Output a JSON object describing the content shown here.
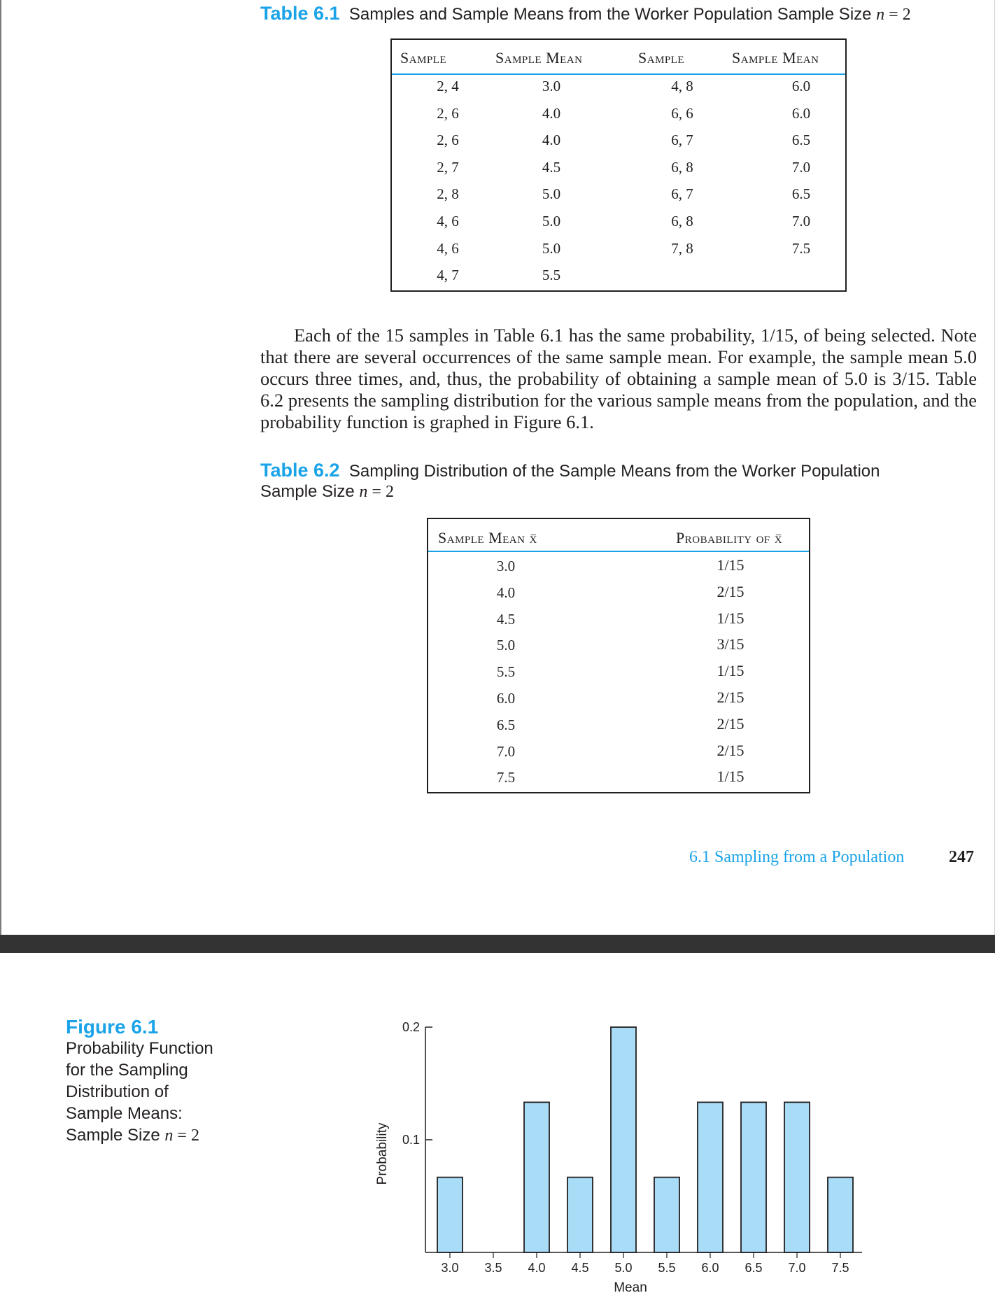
{
  "table1": {
    "caption_num": "Table 6.1",
    "caption_text": "Samples and Sample Means from the Worker Population Sample Size ",
    "caption_n": "n",
    "caption_eq": " = 2",
    "headers": [
      "Sample",
      "Sample Mean",
      "Sample",
      "Sample Mean"
    ],
    "left_rows": [
      [
        "2, 4",
        "3.0"
      ],
      [
        "2, 6",
        "4.0"
      ],
      [
        "2, 6",
        "4.0"
      ],
      [
        "2, 7",
        "4.5"
      ],
      [
        "2, 8",
        "5.0"
      ],
      [
        "4, 6",
        "5.0"
      ],
      [
        "4, 6",
        "5.0"
      ],
      [
        "4, 7",
        "5.5"
      ]
    ],
    "right_rows": [
      [
        "4, 8",
        "6.0"
      ],
      [
        "6, 6",
        "6.0"
      ],
      [
        "6, 7",
        "6.5"
      ],
      [
        "6, 8",
        "7.0"
      ],
      [
        "6, 7",
        "6.5"
      ],
      [
        "6, 8",
        "7.0"
      ],
      [
        "7, 8",
        "7.5"
      ]
    ]
  },
  "paragraph": "Each of the 15 samples in Table 6.1 has the same probability, 1/15, of being selected. Note that there are several occurrences of the same sample mean. For example, the sample mean 5.0 occurs three times, and, thus, the probability of obtaining a sample mean of 5.0 is 3/15. Table 6.2 presents the sampling distribution for the various sample means from the population, and the probability function is graphed in Figure 6.1.",
  "table2": {
    "caption_num": "Table 6.2",
    "caption_text": "Sampling Distribution of the Sample Means from the Worker Population",
    "caption_line2": "Sample Size ",
    "caption_n": "n",
    "caption_eq": " = 2",
    "headers": [
      "Sample Mean x̅",
      "Probability of x̅"
    ],
    "rows": [
      [
        "3.0",
        "1/15"
      ],
      [
        "4.0",
        "2/15"
      ],
      [
        "4.5",
        "1/15"
      ],
      [
        "5.0",
        "3/15"
      ],
      [
        "5.5",
        "1/15"
      ],
      [
        "6.0",
        "2/15"
      ],
      [
        "6.5",
        "2/15"
      ],
      [
        "7.0",
        "2/15"
      ],
      [
        "7.5",
        "1/15"
      ]
    ]
  },
  "footer": {
    "section": "6.1 Sampling from a Population",
    "page": "247"
  },
  "figure": {
    "num": "Figure 6.1",
    "lines": [
      "Probability Function",
      "for the Sampling",
      "Distribution of",
      "Sample Means:"
    ],
    "last_line_text": "Sample Size ",
    "last_line_n": "n",
    "last_line_eq": " = 2"
  },
  "chart_data": {
    "type": "bar",
    "xlabel": "Mean",
    "ylabel": "Probability",
    "ylim": [
      0,
      0.2
    ],
    "yticks": [
      "0.1",
      "0.2"
    ],
    "ytick_values": [
      0.1,
      0.2
    ],
    "xticks": [
      "3.0",
      "3.5",
      "4.0",
      "4.5",
      "5.0",
      "5.5",
      "6.0",
      "6.5",
      "7.0",
      "7.5"
    ],
    "x": [
      3.0,
      4.0,
      4.5,
      5.0,
      5.5,
      6.0,
      6.5,
      7.0,
      7.5
    ],
    "values": [
      0.0667,
      0.1333,
      0.0667,
      0.2,
      0.0667,
      0.1333,
      0.1333,
      0.1333,
      0.0667
    ],
    "bar_color": "#a9dcf7",
    "grid": false
  }
}
